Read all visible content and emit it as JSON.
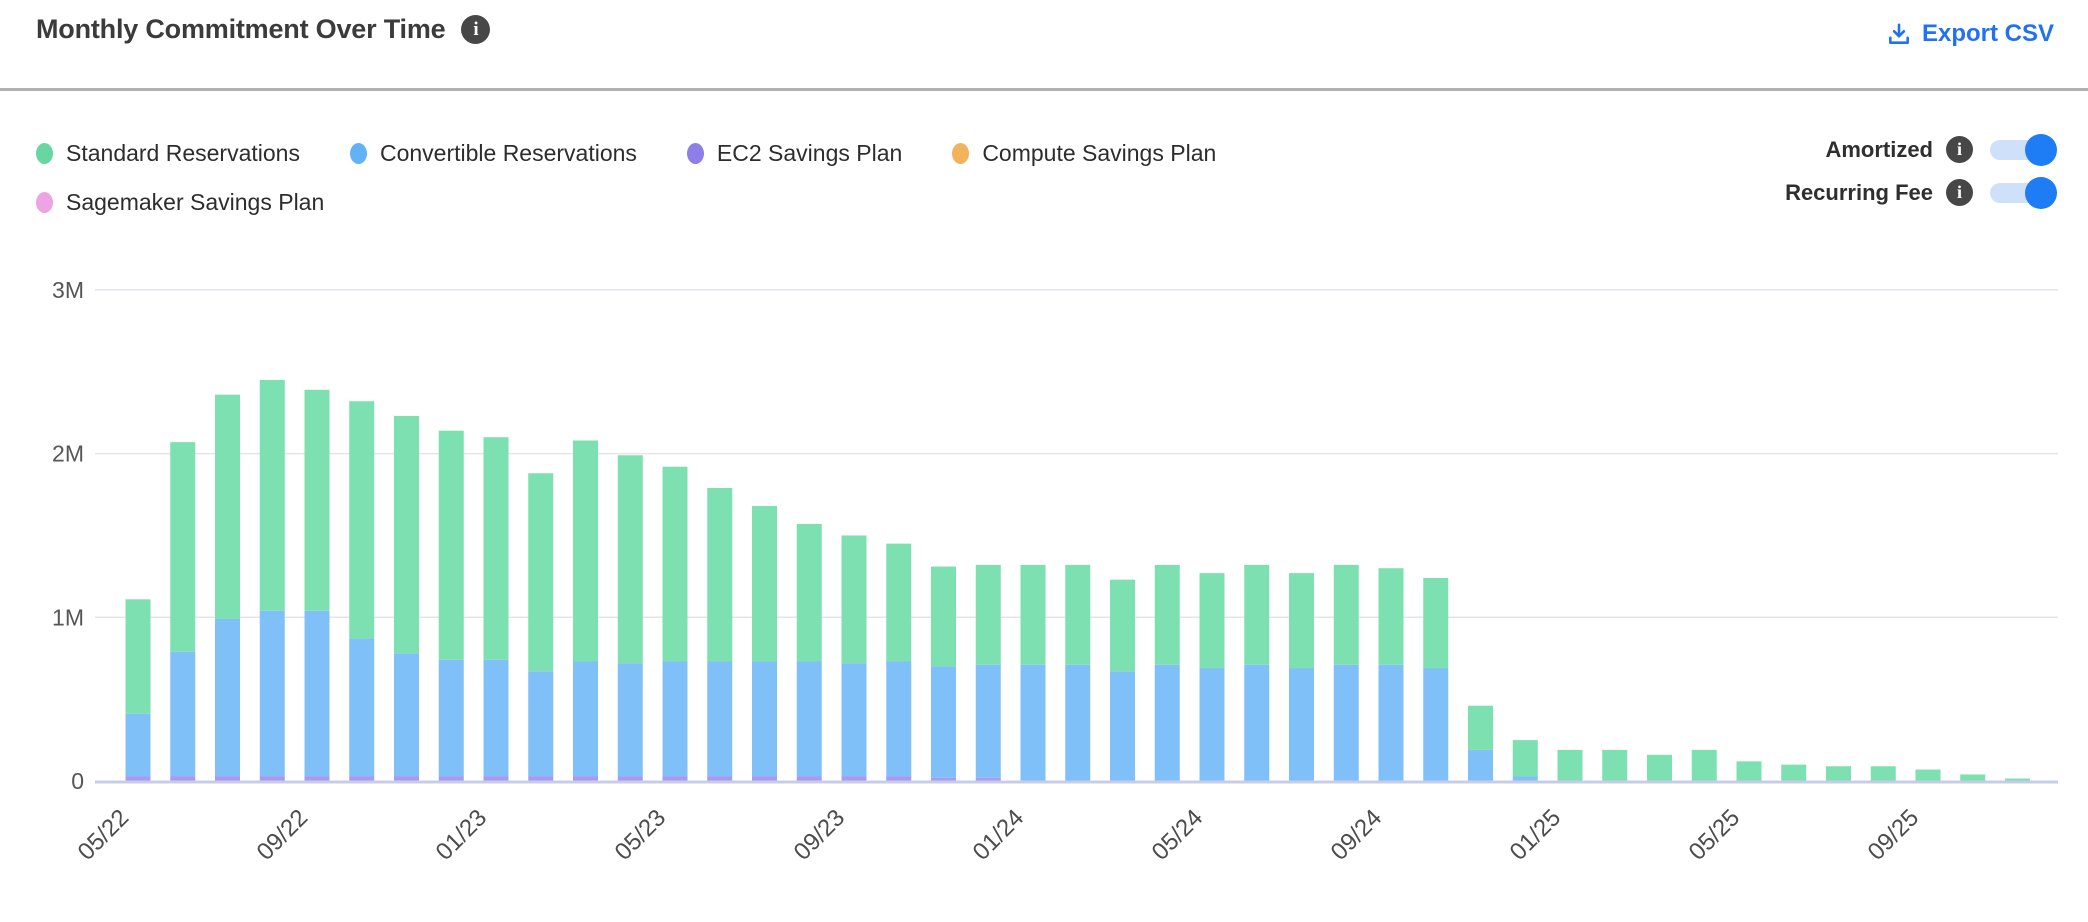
{
  "header": {
    "title": "Monthly Commitment Over Time",
    "export_label": "Export CSV"
  },
  "legend": {
    "items": [
      {
        "label": "Standard Reservations",
        "color": "#68d6a1"
      },
      {
        "label": "Convertible Reservations",
        "color": "#61b2f6"
      },
      {
        "label": "EC2 Savings Plan",
        "color": "#8b7fe8"
      },
      {
        "label": "Compute Savings Plan",
        "color": "#f2b35c"
      },
      {
        "label": "Sagemaker Savings Plan",
        "color": "#eca4e4"
      }
    ]
  },
  "toggles": [
    {
      "label": "Amortized",
      "state": "on"
    },
    {
      "label": "Recurring Fee",
      "state": "on"
    }
  ],
  "colors": {
    "accent_blue": "#2272f0",
    "toggle_track": "#cfe1fa",
    "toggle_knob": "#1e7cf5",
    "info_icon_bg": "#474747",
    "divider": "#b1b1b1",
    "gridline": "#e4e5e9",
    "baseline": "#c7cde9",
    "axis_text": "#4c4c4c"
  },
  "chart_data": {
    "type": "bar",
    "stacked": true,
    "title": "Monthly Commitment Over Time",
    "xlabel": "",
    "ylabel": "",
    "unit": "millions (M)",
    "ylim": [
      0,
      3.2
    ],
    "grid": "horizontal",
    "legend_position": "top-left",
    "y_ticks": [
      "0",
      "1M",
      "2M",
      "3M"
    ],
    "x_tick_labels": [
      "05/22",
      "09/22",
      "01/23",
      "05/23",
      "09/23",
      "01/24",
      "05/24",
      "09/24",
      "01/25",
      "05/25",
      "09/25"
    ],
    "categories": [
      "05/22",
      "06/22",
      "07/22",
      "08/22",
      "09/22",
      "10/22",
      "11/22",
      "12/22",
      "01/23",
      "02/23",
      "03/23",
      "04/23",
      "05/23",
      "06/23",
      "07/23",
      "08/23",
      "09/23",
      "10/23",
      "11/23",
      "12/23",
      "01/24",
      "02/24",
      "03/24",
      "04/24",
      "05/24",
      "06/24",
      "07/24",
      "08/24",
      "09/24",
      "10/24",
      "11/24",
      "12/24",
      "01/25",
      "02/25",
      "03/25",
      "04/25",
      "05/25",
      "06/25",
      "07/25",
      "08/25",
      "09/25",
      "10/25",
      "11/25"
    ],
    "stack_order": [
      "EC2 Savings Plan",
      "Compute Savings Plan",
      "Sagemaker Savings Plan",
      "Convertible Reservations",
      "Standard Reservations"
    ],
    "series": [
      {
        "name": "Standard Reservations",
        "color": "#68d6a1",
        "bar_color": "#7de0b1",
        "values": [
          0.7,
          1.28,
          1.37,
          1.41,
          1.35,
          1.45,
          1.45,
          1.4,
          1.36,
          1.21,
          1.35,
          1.27,
          1.19,
          1.06,
          0.95,
          0.84,
          0.78,
          0.72,
          0.61,
          0.61,
          0.61,
          0.61,
          0.56,
          0.61,
          0.58,
          0.61,
          0.58,
          0.61,
          0.59,
          0.55,
          0.27,
          0.22,
          0.19,
          0.19,
          0.16,
          0.19,
          0.12,
          0.1,
          0.09,
          0.09,
          0.07,
          0.04,
          0.015
        ]
      },
      {
        "name": "Convertible Reservations",
        "color": "#61b2f6",
        "bar_color": "#80c0f8",
        "values": [
          0.38,
          0.76,
          0.96,
          1.01,
          1.01,
          0.84,
          0.75,
          0.71,
          0.71,
          0.64,
          0.7,
          0.69,
          0.7,
          0.7,
          0.7,
          0.7,
          0.69,
          0.7,
          0.68,
          0.69,
          0.71,
          0.71,
          0.67,
          0.71,
          0.69,
          0.71,
          0.69,
          0.71,
          0.71,
          0.69,
          0.19,
          0.03,
          0,
          0,
          0,
          0,
          0,
          0,
          0,
          0,
          0,
          0,
          0
        ]
      },
      {
        "name": "EC2 Savings Plan",
        "color": "#8b7fe8",
        "bar_color": "#a99af0",
        "values": [
          0.03,
          0.03,
          0.03,
          0.03,
          0.03,
          0.03,
          0.03,
          0.03,
          0.03,
          0.03,
          0.03,
          0.03,
          0.03,
          0.03,
          0.03,
          0.03,
          0.03,
          0.03,
          0.02,
          0.02,
          0,
          0,
          0,
          0,
          0,
          0,
          0,
          0,
          0,
          0,
          0,
          0,
          0,
          0,
          0,
          0,
          0,
          0,
          0,
          0,
          0,
          0,
          0
        ]
      },
      {
        "name": "Compute Savings Plan",
        "color": "#f2b35c",
        "bar_color": "#f2b35c",
        "values": [
          0,
          0,
          0,
          0,
          0,
          0,
          0,
          0,
          0,
          0,
          0,
          0,
          0,
          0,
          0,
          0,
          0,
          0,
          0,
          0,
          0,
          0,
          0,
          0,
          0,
          0,
          0,
          0,
          0,
          0,
          0,
          0,
          0,
          0,
          0,
          0,
          0,
          0,
          0,
          0,
          0,
          0,
          0
        ]
      },
      {
        "name": "Sagemaker Savings Plan",
        "color": "#eca4e4",
        "bar_color": "#eca4e4",
        "values": [
          0,
          0,
          0,
          0,
          0,
          0,
          0,
          0,
          0,
          0,
          0,
          0,
          0,
          0,
          0,
          0,
          0,
          0,
          0,
          0,
          0,
          0,
          0,
          0,
          0,
          0,
          0,
          0,
          0,
          0,
          0,
          0,
          0,
          0,
          0,
          0,
          0,
          0,
          0,
          0,
          0,
          0,
          0
        ]
      }
    ]
  }
}
